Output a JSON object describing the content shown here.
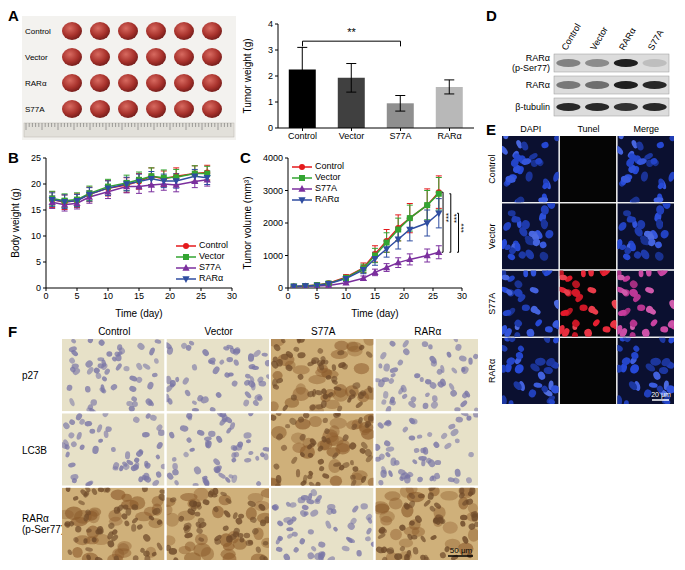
{
  "chart_data": [
    {
      "panel": "A",
      "type": "bar",
      "categories": [
        "Control",
        "Vector",
        "S77A",
        "RARα"
      ],
      "values": [
        2.25,
        1.93,
        0.95,
        1.58
      ],
      "errors": [
        0.85,
        0.55,
        0.3,
        0.27
      ],
      "colors": [
        "#000000",
        "#404040",
        "#8f8f8f",
        "#b8b8b8"
      ],
      "ylabel": "Tumor weight (g)",
      "ylim": [
        0,
        4
      ],
      "yticks": [
        0,
        1,
        2,
        3,
        4
      ],
      "annotations": [
        {
          "text": "**",
          "from": "Control",
          "to": "S77A"
        }
      ]
    },
    {
      "panel": "B",
      "type": "line",
      "x": [
        1,
        3,
        5,
        7,
        10,
        13,
        15,
        17,
        19,
        21,
        24,
        26
      ],
      "series": [
        {
          "name": "Control",
          "color": "#e41a1c",
          "marker": "circle",
          "values": [
            17,
            16.5,
            16.8,
            18,
            19.2,
            19.8,
            20.5,
            21.5,
            21,
            21.5,
            22,
            22.2
          ],
          "errors": [
            1.5,
            1.4,
            1.3,
            1.4,
            1.5,
            1.4,
            1.5,
            1.6,
            1.5,
            1.6,
            1.5,
            1.4
          ]
        },
        {
          "name": "Vector",
          "color": "#33a532",
          "marker": "square",
          "values": [
            17.2,
            16.8,
            17,
            18.2,
            19.5,
            20.2,
            20.8,
            21.5,
            21.2,
            21.3,
            22,
            22
          ],
          "errors": [
            1.4,
            1.3,
            1.3,
            1.4,
            1.4,
            1.5,
            1.5,
            1.6,
            1.5,
            1.5,
            1.5,
            1.4
          ]
        },
        {
          "name": "S77A",
          "color": "#7b2f9e",
          "marker": "triangle",
          "values": [
            16.5,
            16,
            16.3,
            17.5,
            18.5,
            19.5,
            19.5,
            19.8,
            20,
            19.8,
            20.5,
            20.8
          ],
          "errors": [
            1.2,
            1.2,
            1.1,
            1.2,
            1.3,
            1.2,
            1.3,
            1.3,
            1.2,
            1.3,
            1.2,
            1.2
          ]
        },
        {
          "name": "RARα",
          "color": "#2f4da1",
          "marker": "triangle-down",
          "values": [
            17,
            16.6,
            16.8,
            18,
            19.2,
            20,
            20.5,
            21,
            20.6,
            20.6,
            21.5,
            21.2
          ],
          "errors": [
            1.3,
            1.3,
            1.2,
            1.3,
            1.4,
            1.3,
            1.4,
            1.4,
            1.3,
            1.4,
            1.3,
            1.3
          ]
        }
      ],
      "xlabel": "Time (day)",
      "ylabel": "Body weight (g)",
      "xlim": [
        0,
        30
      ],
      "xticks": [
        0,
        5,
        10,
        15,
        20,
        25,
        30
      ],
      "ylim": [
        0,
        25
      ],
      "yticks": [
        0,
        5,
        10,
        15,
        20,
        25
      ],
      "legend": "lower right"
    },
    {
      "panel": "C",
      "type": "line",
      "x": [
        1,
        3,
        5,
        7,
        10,
        13,
        15,
        17,
        19,
        21,
        24,
        26
      ],
      "series": [
        {
          "name": "Control",
          "color": "#e41a1c",
          "marker": "circle",
          "values": [
            50,
            60,
            90,
            150,
            330,
            620,
            1050,
            1450,
            1850,
            2150,
            2550,
            2950
          ],
          "errors": [
            20,
            20,
            30,
            40,
            80,
            150,
            250,
            350,
            400,
            450,
            500,
            500
          ]
        },
        {
          "name": "Vector",
          "color": "#33a532",
          "marker": "square",
          "values": [
            50,
            60,
            90,
            140,
            310,
            600,
            1000,
            1400,
            1800,
            2150,
            2550,
            2900
          ],
          "errors": [
            20,
            20,
            30,
            40,
            80,
            130,
            220,
            300,
            350,
            400,
            450,
            500
          ]
        },
        {
          "name": "S77A",
          "color": "#7b2f9e",
          "marker": "triangle",
          "values": [
            40,
            50,
            60,
            80,
            160,
            300,
            480,
            630,
            780,
            880,
            1000,
            1100
          ],
          "errors": [
            10,
            10,
            15,
            20,
            40,
            70,
            100,
            120,
            150,
            170,
            200,
            200
          ]
        },
        {
          "name": "RARα",
          "color": "#2f4da1",
          "marker": "triangle-down",
          "values": [
            50,
            60,
            80,
            130,
            290,
            560,
            900,
            1200,
            1500,
            1800,
            2000,
            2300
          ],
          "errors": [
            20,
            20,
            25,
            35,
            70,
            120,
            200,
            250,
            300,
            350,
            400,
            450
          ]
        }
      ],
      "xlabel": "Time (day)",
      "ylabel": "Tumor volume (mm³)",
      "xlim": [
        0,
        30
      ],
      "xticks": [
        0,
        5,
        10,
        15,
        20,
        25,
        30
      ],
      "ylim": [
        0,
        4000
      ],
      "yticks": [
        0,
        1000,
        2000,
        3000,
        4000
      ],
      "legend": "upper left",
      "annotations": [
        {
          "text": "***",
          "from": "Control",
          "to": "S77A"
        },
        {
          "text": "***",
          "from": "Vector",
          "to": "S77A"
        },
        {
          "text": "***",
          "from": "RARα",
          "to": "S77A"
        }
      ]
    }
  ],
  "tumor_photo": {
    "rows": [
      "Control",
      "Vector",
      "RARα",
      "S77A"
    ]
  },
  "western_blot": {
    "panel": "D",
    "lanes": [
      "Control",
      "Vector",
      "RARα",
      "S77A"
    ],
    "rows": [
      {
        "label": [
          "RARα",
          "(p-Ser77)"
        ],
        "intensity": [
          0.45,
          0.4,
          0.95,
          0.15
        ]
      },
      {
        "label": [
          "RARα"
        ],
        "intensity": [
          0.5,
          0.55,
          0.95,
          0.9
        ]
      },
      {
        "label": [
          "β-tubulin"
        ],
        "intensity": [
          0.9,
          0.9,
          0.85,
          0.9
        ]
      }
    ]
  },
  "tunel": {
    "panel": "E",
    "columns": [
      "DAPI",
      "Tunel",
      "Merge"
    ],
    "rows": [
      "Control",
      "Vector",
      "S77A",
      "RARα"
    ],
    "tunel_positive": [
      false,
      false,
      true,
      false
    ],
    "scale_bar": "20 μm"
  },
  "ihc": {
    "panel": "F",
    "columns": [
      "Control",
      "Vector",
      "S77A",
      "RARα"
    ],
    "rows": [
      {
        "label": [
          "p27"
        ],
        "positive": [
          false,
          false,
          true,
          false
        ]
      },
      {
        "label": [
          "LC3B"
        ],
        "positive": [
          false,
          false,
          true,
          false
        ]
      },
      {
        "label": [
          "RARα",
          "(p-Ser77)"
        ],
        "positive": [
          true,
          true,
          false,
          true
        ]
      }
    ],
    "scale_bar": "50 μm"
  }
}
